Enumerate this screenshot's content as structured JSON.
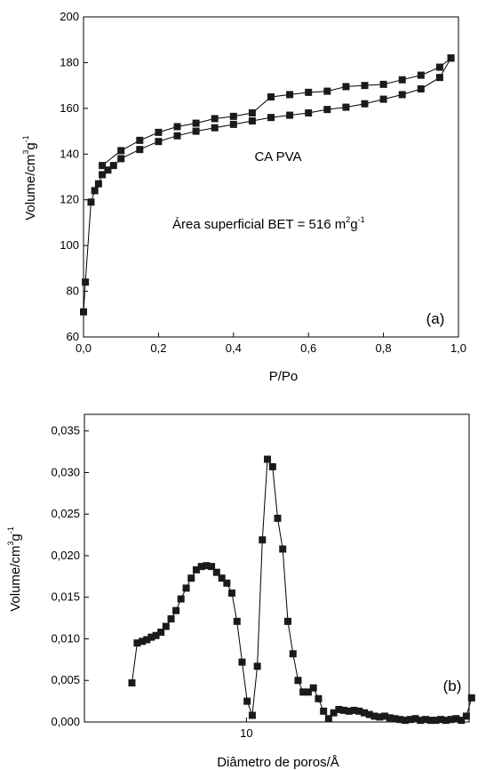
{
  "chart_data": [
    {
      "type": "scatter",
      "panel_label": "(a)",
      "annotations": {
        "sample": "CA PVA",
        "bet_text": "Área superficial BET = 516 m",
        "bet_sup1": "2",
        "bet_mid": "g",
        "bet_sup2": "-1"
      },
      "xlabel": "P/Po",
      "ylabel": {
        "base": "Volume/cm",
        "sup1": "3",
        "mid": "g",
        "sup2": "-1"
      },
      "xlim": [
        0,
        1.0
      ],
      "ylim": [
        60,
        200
      ],
      "x_ticks": [
        0,
        0.2,
        0.4,
        0.6,
        0.8,
        1.0
      ],
      "x_tick_labels": [
        "0,0",
        "0,2",
        "0,4",
        "0,6",
        "0,8",
        "1,0"
      ],
      "y_ticks": [
        60,
        80,
        100,
        120,
        140,
        160,
        180,
        200
      ],
      "y_tick_labels": [
        "60",
        "80",
        "100",
        "120",
        "140",
        "160",
        "180",
        "200"
      ],
      "series": [
        {
          "values_x": [
            0.0,
            0.005,
            0.02,
            0.03,
            0.04,
            0.05,
            0.065,
            0.08,
            0.1,
            0.15,
            0.2,
            0.25,
            0.3,
            0.35,
            0.4,
            0.45,
            0.5,
            0.55,
            0.6,
            0.65,
            0.7,
            0.75,
            0.8,
            0.85,
            0.9,
            0.95,
            0.98
          ],
          "values_y": [
            71,
            84,
            119,
            124,
            127,
            131,
            133,
            135,
            138,
            142,
            145.5,
            148,
            150,
            151.5,
            153,
            154.5,
            156,
            157,
            158,
            159.5,
            160.5,
            162,
            164,
            166,
            168.5,
            173.5,
            182
          ]
        },
        {
          "values_x": [
            0.98,
            0.95,
            0.9,
            0.85,
            0.8,
            0.75,
            0.7,
            0.65,
            0.6,
            0.55,
            0.5,
            0.45,
            0.4,
            0.35,
            0.3,
            0.25,
            0.2,
            0.15,
            0.1,
            0.05
          ],
          "values_y": [
            182,
            178,
            174.5,
            172.5,
            170.5,
            170,
            169.5,
            167.5,
            167,
            166,
            165,
            158,
            156.5,
            155.5,
            153.5,
            152,
            149.5,
            146,
            141.5,
            135
          ]
        }
      ]
    },
    {
      "type": "scatter",
      "panel_label": "(b)",
      "xlabel": "Diâmetro de poros/Å",
      "ylabel": {
        "base": "Volume/cm",
        "sup1": "3",
        "mid": "g",
        "sup2": "-1"
      },
      "x_scale": "log",
      "xlim": [
        3.1,
        50
      ],
      "ylim": [
        0,
        0.037
      ],
      "x_ticks": [
        10
      ],
      "x_tick_labels": [
        "10"
      ],
      "y_ticks": [
        0,
        0.005,
        0.01,
        0.015,
        0.02,
        0.025,
        0.03,
        0.035
      ],
      "y_tick_labels": [
        "0,000",
        "0,005",
        "0,010",
        "0,015",
        "0,020",
        "0,025",
        "0,030",
        "0,035"
      ],
      "series": [
        {
          "values_x": [
            4.37,
            4.54,
            4.71,
            4.87,
            5.03,
            5.2,
            5.39,
            5.59,
            5.8,
            6.01,
            6.23,
            6.47,
            6.71,
            6.96,
            7.22,
            7.49,
            7.77,
            8.06,
            8.37,
            8.68,
            9.0,
            9.34,
            9.69,
            10.05,
            10.43,
            10.82,
            11.22,
            11.64,
            12.08,
            12.53,
            13.0,
            13.49,
            14.0,
            14.52,
            15.06,
            15.63,
            16.22,
            16.83,
            17.46,
            18.11,
            18.79,
            19.5,
            20.23,
            20.99,
            21.77,
            22.59,
            23.44,
            24.32,
            25.23,
            26.18,
            27.16,
            28.18,
            29.24,
            30.34,
            31.48,
            32.67,
            33.9,
            35.17,
            36.49,
            37.86,
            39.28,
            40.75,
            42.28,
            43.87,
            45.52,
            47.23,
            49.0,
            50.9
          ],
          "values_y": [
            0.0047,
            0.0095,
            0.0097,
            0.0099,
            0.0102,
            0.0104,
            0.0108,
            0.0115,
            0.0124,
            0.0134,
            0.0148,
            0.0161,
            0.0173,
            0.0183,
            0.0187,
            0.0188,
            0.0187,
            0.018,
            0.0173,
            0.0167,
            0.0155,
            0.0121,
            0.0072,
            0.0025,
            0.0008,
            0.0067,
            0.0219,
            0.0316,
            0.0307,
            0.0245,
            0.0208,
            0.0121,
            0.0082,
            0.005,
            0.0036,
            0.0036,
            0.0041,
            0.0028,
            0.0013,
            0.0004,
            0.0011,
            0.0015,
            0.0014,
            0.0013,
            0.0014,
            0.0013,
            0.0011,
            0.0009,
            0.0007,
            0.0006,
            0.0007,
            0.0005,
            0.0004,
            0.0003,
            0.0002,
            0.0003,
            0.0004,
            0.0002,
            0.0003,
            0.0002,
            0.0002,
            0.0003,
            0.0002,
            0.0003,
            0.0004,
            0.0002,
            0.0007,
            0.0029
          ]
        }
      ]
    }
  ]
}
